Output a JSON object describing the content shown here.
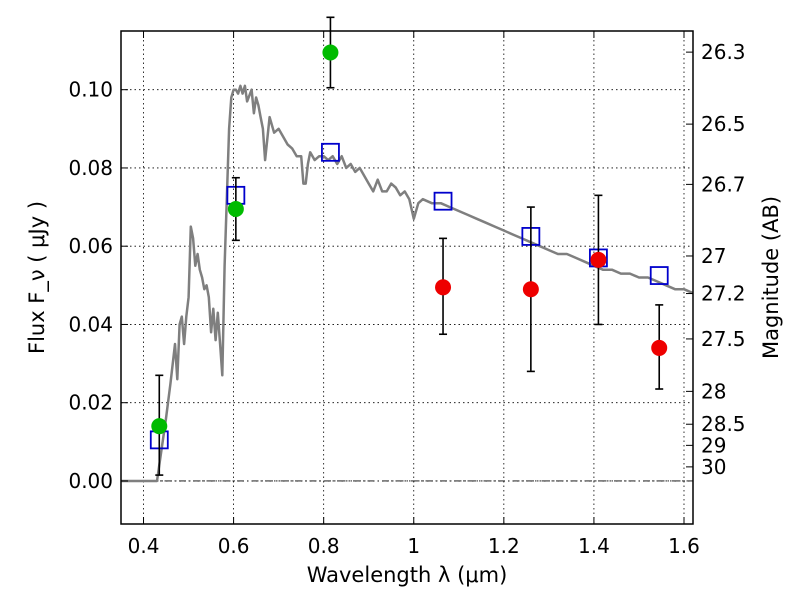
{
  "chart_data": {
    "type": "scatter",
    "xlabel": "Wavelength  λ (μm)",
    "ylabel": "Flux  F_ν  ( μJy )",
    "ylabel_right": "Magnitude (AB)",
    "xlim": [
      0.35,
      1.62
    ],
    "ylim": [
      -0.011,
      0.115
    ],
    "grid": true,
    "x_ticks": [
      0.4,
      0.6,
      0.8,
      1.0,
      1.2,
      1.4,
      1.6
    ],
    "x_tick_labels": [
      "0.4",
      "0.6",
      "0.8",
      "1",
      "1.2",
      "1.4",
      "1.6"
    ],
    "y_ticks": [
      0.0,
      0.02,
      0.04,
      0.06,
      0.08,
      0.1
    ],
    "y_tick_labels": [
      "0.00",
      "0.02",
      "0.04",
      "0.06",
      "0.08",
      "0.10"
    ],
    "right_ticks": [
      {
        "label": "26.3",
        "flux": 0.1096
      },
      {
        "label": "26.5",
        "flux": 0.0912
      },
      {
        "label": "26.7",
        "flux": 0.0758
      },
      {
        "label": "27",
        "flux": 0.0575
      },
      {
        "label": "27.2",
        "flux": 0.0479
      },
      {
        "label": "27.5",
        "flux": 0.0363
      },
      {
        "label": "28",
        "flux": 0.0229
      },
      {
        "label": "28.5",
        "flux": 0.0145
      },
      {
        "label": "29",
        "flux": 0.0091
      },
      {
        "label": "30",
        "flux": 0.0036
      }
    ],
    "series": [
      {
        "kind": "line",
        "color": "#7f7f7f",
        "x": [
          0.35,
          0.43,
          0.44,
          0.45,
          0.46,
          0.47,
          0.475,
          0.48,
          0.485,
          0.49,
          0.495,
          0.5,
          0.505,
          0.51,
          0.515,
          0.52,
          0.525,
          0.53,
          0.535,
          0.54,
          0.545,
          0.55,
          0.555,
          0.56,
          0.565,
          0.57,
          0.575,
          0.58,
          0.585,
          0.59,
          0.595,
          0.6,
          0.605,
          0.61,
          0.615,
          0.62,
          0.625,
          0.63,
          0.64,
          0.645,
          0.65,
          0.655,
          0.66,
          0.665,
          0.67,
          0.68,
          0.69,
          0.7,
          0.71,
          0.72,
          0.73,
          0.74,
          0.75,
          0.755,
          0.76,
          0.765,
          0.77,
          0.78,
          0.79,
          0.8,
          0.81,
          0.82,
          0.83,
          0.84,
          0.85,
          0.86,
          0.87,
          0.88,
          0.89,
          0.9,
          0.91,
          0.92,
          0.93,
          0.94,
          0.95,
          0.96,
          0.97,
          0.98,
          0.99,
          1.0,
          1.01,
          1.02,
          1.04,
          1.06,
          1.08,
          1.1,
          1.12,
          1.14,
          1.16,
          1.18,
          1.2,
          1.22,
          1.24,
          1.26,
          1.28,
          1.3,
          1.32,
          1.34,
          1.36,
          1.38,
          1.4,
          1.42,
          1.44,
          1.46,
          1.48,
          1.5,
          1.52,
          1.54,
          1.56,
          1.58,
          1.6,
          1.62
        ],
        "y": [
          0.0,
          0.0,
          0.008,
          0.016,
          0.025,
          0.035,
          0.026,
          0.04,
          0.042,
          0.035,
          0.042,
          0.047,
          0.065,
          0.062,
          0.055,
          0.058,
          0.054,
          0.052,
          0.049,
          0.05,
          0.047,
          0.038,
          0.044,
          0.036,
          0.043,
          0.035,
          0.027,
          0.055,
          0.072,
          0.09,
          0.098,
          0.1,
          0.1,
          0.099,
          0.101,
          0.099,
          0.101,
          0.097,
          0.1,
          0.094,
          0.098,
          0.096,
          0.093,
          0.09,
          0.082,
          0.093,
          0.089,
          0.09,
          0.088,
          0.086,
          0.085,
          0.083,
          0.083,
          0.076,
          0.076,
          0.081,
          0.084,
          0.082,
          0.083,
          0.083,
          0.082,
          0.083,
          0.081,
          0.083,
          0.08,
          0.081,
          0.079,
          0.08,
          0.078,
          0.076,
          0.074,
          0.077,
          0.074,
          0.074,
          0.076,
          0.075,
          0.073,
          0.074,
          0.072,
          0.067,
          0.071,
          0.072,
          0.071,
          0.071,
          0.07,
          0.069,
          0.068,
          0.067,
          0.066,
          0.065,
          0.064,
          0.063,
          0.062,
          0.061,
          0.06,
          0.059,
          0.058,
          0.058,
          0.057,
          0.056,
          0.055,
          0.054,
          0.054,
          0.053,
          0.053,
          0.052,
          0.052,
          0.051,
          0.05,
          0.049,
          0.049,
          0.048
        ]
      },
      {
        "kind": "open-squares",
        "color": "#0000cc",
        "x": [
          0.435,
          0.605,
          0.815,
          1.065,
          1.26,
          1.41,
          1.545
        ],
        "y": [
          0.0105,
          0.073,
          0.084,
          0.0715,
          0.0625,
          0.057,
          0.0525
        ]
      },
      {
        "kind": "points-with-errors",
        "color": "#00bb00",
        "x": [
          0.435,
          0.605,
          0.815
        ],
        "y": [
          0.014,
          0.0695,
          0.1095
        ],
        "yerr_low": [
          0.0125,
          0.008,
          0.009
        ],
        "yerr_high": [
          0.013,
          0.008,
          0.009
        ]
      },
      {
        "kind": "points-with-errors",
        "color": "#ee0000",
        "x": [
          1.065,
          1.26,
          1.41,
          1.545
        ],
        "y": [
          0.0495,
          0.049,
          0.0565,
          0.034
        ],
        "yerr_low": [
          0.012,
          0.021,
          0.0165,
          0.0105
        ],
        "yerr_high": [
          0.0125,
          0.021,
          0.0165,
          0.011
        ]
      }
    ],
    "reference_line": {
      "y": 0.0,
      "style": "dash-dot",
      "color": "#000000"
    }
  }
}
